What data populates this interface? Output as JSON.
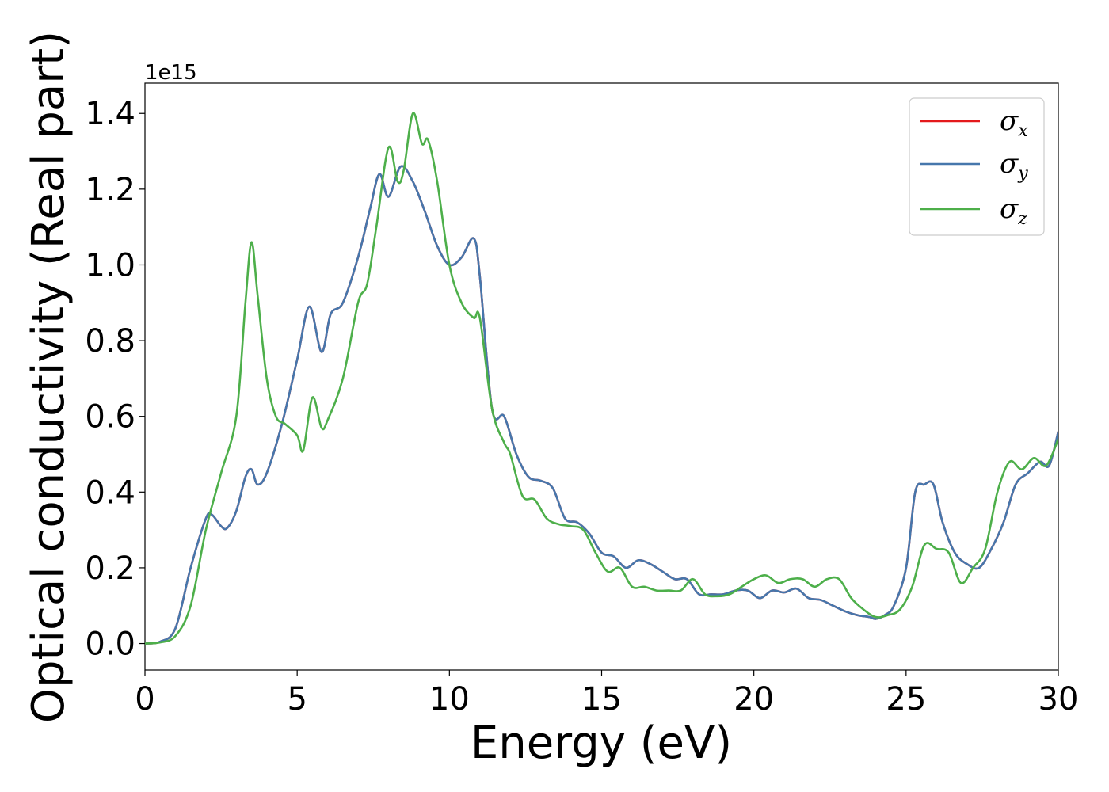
{
  "chart_data": {
    "type": "line",
    "xlabel": "Energy (eV)",
    "ylabel": "Optical conductivity (Real part)",
    "y_offset_label": "1e15",
    "y_scale": 1000000000000000.0,
    "xlim": [
      0,
      30
    ],
    "ylim": [
      -0.07,
      1.48
    ],
    "x_ticks": [
      0,
      5,
      10,
      15,
      20,
      25,
      30
    ],
    "x_tick_labels": [
      "0",
      "5",
      "10",
      "15",
      "20",
      "25",
      "30"
    ],
    "y_ticks": [
      0.0,
      0.2,
      0.4,
      0.6,
      0.8,
      1.0,
      1.2,
      1.4
    ],
    "y_tick_labels": [
      "0.0",
      "0.2",
      "0.4",
      "0.6",
      "0.8",
      "1.0",
      "1.2",
      "1.4"
    ],
    "grid": false,
    "legend_position": "top-right",
    "series": [
      {
        "name": "σ",
        "subscript": "x",
        "color": "#e41a1c",
        "x": [
          0,
          0.5,
          1,
          1.5,
          2,
          2.2,
          2.5,
          2.7,
          3,
          3.3,
          3.5,
          3.7,
          4,
          4.5,
          5,
          5.4,
          5.8,
          6.1,
          6.5,
          7,
          7.4,
          7.7,
          8,
          8.4,
          8.8,
          9.2,
          9.6,
          10,
          10.4,
          10.8,
          11,
          11.4,
          11.8,
          12.2,
          12.6,
          13,
          13.4,
          13.8,
          14.2,
          14.6,
          15,
          15.4,
          15.8,
          16.2,
          16.6,
          17,
          17.4,
          17.8,
          18.2,
          18.6,
          19,
          19.4,
          19.8,
          20.2,
          20.6,
          21,
          21.4,
          21.8,
          22.2,
          22.6,
          23,
          23.4,
          23.8,
          24,
          24.3,
          24.6,
          25,
          25.3,
          25.6,
          25.9,
          26.2,
          26.6,
          27,
          27.4,
          27.8,
          28.2,
          28.6,
          29,
          29.4,
          29.7,
          30
        ],
        "y": [
          0.0,
          0.005,
          0.04,
          0.2,
          0.33,
          0.34,
          0.31,
          0.305,
          0.35,
          0.44,
          0.46,
          0.42,
          0.45,
          0.58,
          0.75,
          0.89,
          0.77,
          0.87,
          0.9,
          1.02,
          1.15,
          1.24,
          1.18,
          1.26,
          1.22,
          1.14,
          1.05,
          1.0,
          1.02,
          1.07,
          0.97,
          0.62,
          0.6,
          0.5,
          0.44,
          0.43,
          0.41,
          0.33,
          0.32,
          0.29,
          0.24,
          0.23,
          0.2,
          0.22,
          0.21,
          0.19,
          0.17,
          0.17,
          0.13,
          0.13,
          0.13,
          0.14,
          0.14,
          0.12,
          0.14,
          0.135,
          0.145,
          0.12,
          0.115,
          0.1,
          0.085,
          0.075,
          0.07,
          0.065,
          0.075,
          0.1,
          0.2,
          0.4,
          0.42,
          0.42,
          0.32,
          0.24,
          0.21,
          0.2,
          0.25,
          0.32,
          0.42,
          0.45,
          0.48,
          0.47,
          0.56
        ]
      },
      {
        "name": "σ",
        "subscript": "y",
        "color": "#4677ac",
        "x": [
          0,
          0.5,
          1,
          1.5,
          2,
          2.2,
          2.5,
          2.7,
          3,
          3.3,
          3.5,
          3.7,
          4,
          4.5,
          5,
          5.4,
          5.8,
          6.1,
          6.5,
          7,
          7.4,
          7.7,
          8,
          8.4,
          8.8,
          9.2,
          9.6,
          10,
          10.4,
          10.8,
          11,
          11.4,
          11.8,
          12.2,
          12.6,
          13,
          13.4,
          13.8,
          14.2,
          14.6,
          15,
          15.4,
          15.8,
          16.2,
          16.6,
          17,
          17.4,
          17.8,
          18.2,
          18.6,
          19,
          19.4,
          19.8,
          20.2,
          20.6,
          21,
          21.4,
          21.8,
          22.2,
          22.6,
          23,
          23.4,
          23.8,
          24,
          24.3,
          24.6,
          25,
          25.3,
          25.6,
          25.9,
          26.2,
          26.6,
          27,
          27.4,
          27.8,
          28.2,
          28.6,
          29,
          29.4,
          29.7,
          30
        ],
        "y": [
          0.0,
          0.005,
          0.04,
          0.2,
          0.33,
          0.34,
          0.31,
          0.305,
          0.35,
          0.44,
          0.46,
          0.42,
          0.45,
          0.58,
          0.75,
          0.89,
          0.77,
          0.87,
          0.9,
          1.02,
          1.15,
          1.24,
          1.18,
          1.26,
          1.22,
          1.14,
          1.05,
          1.0,
          1.02,
          1.07,
          0.97,
          0.62,
          0.6,
          0.5,
          0.44,
          0.43,
          0.41,
          0.33,
          0.32,
          0.29,
          0.24,
          0.23,
          0.2,
          0.22,
          0.21,
          0.19,
          0.17,
          0.17,
          0.13,
          0.13,
          0.13,
          0.14,
          0.14,
          0.12,
          0.14,
          0.135,
          0.145,
          0.12,
          0.115,
          0.1,
          0.085,
          0.075,
          0.07,
          0.065,
          0.075,
          0.1,
          0.2,
          0.4,
          0.42,
          0.42,
          0.32,
          0.24,
          0.21,
          0.2,
          0.25,
          0.32,
          0.42,
          0.45,
          0.48,
          0.47,
          0.56
        ]
      },
      {
        "name": "σ",
        "subscript": "z",
        "color": "#4daf4a",
        "x": [
          0,
          0.5,
          1,
          1.5,
          2,
          2.5,
          3,
          3.3,
          3.5,
          3.7,
          4,
          4.3,
          4.6,
          5,
          5.2,
          5.5,
          5.8,
          6,
          6.5,
          7,
          7.3,
          7.6,
          8,
          8.3,
          8.5,
          8.8,
          9.1,
          9.3,
          9.6,
          10,
          10.4,
          10.8,
          11,
          11.4,
          11.8,
          12,
          12.4,
          12.8,
          13.2,
          13.6,
          14,
          14.4,
          14.8,
          15.2,
          15.6,
          16,
          16.4,
          16.8,
          17.2,
          17.6,
          18,
          18.4,
          18.8,
          19.2,
          19.6,
          20,
          20.4,
          20.8,
          21.2,
          21.6,
          22,
          22.4,
          22.8,
          23.2,
          23.6,
          24,
          24.4,
          24.8,
          25.2,
          25.6,
          26,
          26.4,
          26.8,
          27.2,
          27.6,
          28,
          28.4,
          28.8,
          29.2,
          29.6,
          30
        ],
        "y": [
          0.0,
          0.003,
          0.02,
          0.1,
          0.3,
          0.45,
          0.6,
          0.9,
          1.06,
          0.92,
          0.7,
          0.6,
          0.58,
          0.55,
          0.51,
          0.65,
          0.57,
          0.59,
          0.7,
          0.9,
          0.95,
          1.1,
          1.31,
          1.22,
          1.25,
          1.4,
          1.32,
          1.33,
          1.22,
          1.0,
          0.9,
          0.86,
          0.86,
          0.62,
          0.53,
          0.5,
          0.39,
          0.38,
          0.33,
          0.315,
          0.31,
          0.3,
          0.24,
          0.19,
          0.2,
          0.15,
          0.15,
          0.14,
          0.14,
          0.14,
          0.17,
          0.13,
          0.125,
          0.13,
          0.15,
          0.17,
          0.18,
          0.16,
          0.17,
          0.17,
          0.15,
          0.17,
          0.17,
          0.12,
          0.09,
          0.07,
          0.075,
          0.09,
          0.15,
          0.26,
          0.25,
          0.24,
          0.16,
          0.2,
          0.25,
          0.4,
          0.48,
          0.46,
          0.49,
          0.47,
          0.54
        ]
      }
    ]
  }
}
